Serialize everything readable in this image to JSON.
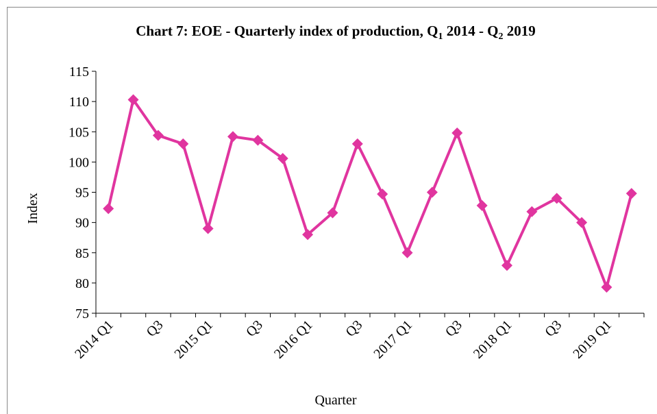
{
  "chart_data": {
    "type": "line",
    "title": [
      "Chart 7: EOE - Quarterly index of production, Q",
      "1",
      " 2014 - Q",
      "2",
      " 2019"
    ],
    "x_label": "Quarter",
    "y_label": "Index",
    "categories": [
      "2014 Q1",
      null,
      "Q3",
      null,
      "2015 Q1",
      null,
      "Q3",
      null,
      "2016 Q1",
      null,
      "Q3",
      null,
      "2017 Q1",
      null,
      "Q3",
      null,
      "2018 Q1",
      null,
      "Q3",
      null,
      "2019 Q1",
      null
    ],
    "series": [
      {
        "name": "Index",
        "color": "#e0359f",
        "values": [
          92.3,
          110.3,
          104.4,
          103.0,
          89.0,
          104.2,
          103.6,
          100.6,
          88.0,
          91.6,
          103.0,
          94.7,
          85.0,
          95.0,
          104.8,
          92.8,
          82.9,
          91.8,
          94.0,
          90.0,
          79.3,
          94.8
        ]
      }
    ],
    "ylim": [
      75,
      115
    ],
    "yticks": [
      75,
      80,
      85,
      90,
      95,
      100,
      105,
      110,
      115
    ],
    "grid": false,
    "legend": false
  }
}
